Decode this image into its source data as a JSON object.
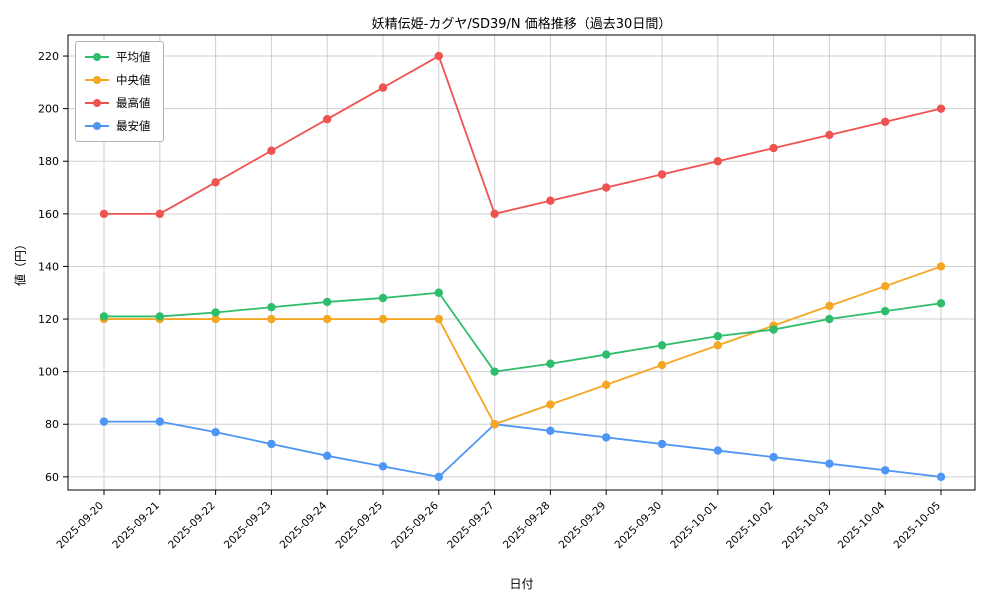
{
  "chart_data": {
    "type": "line",
    "title": "妖精伝姫-カグヤ/SD39/N 価格推移（過去30日間）",
    "xlabel": "日付",
    "ylabel": "値（円）",
    "grid": true,
    "legend_position": "upper-left",
    "ylim": [
      55,
      228
    ],
    "yticks": [
      60,
      80,
      100,
      120,
      140,
      160,
      180,
      200,
      220
    ],
    "x": [
      "2025-09-20",
      "2025-09-21",
      "2025-09-22",
      "2025-09-23",
      "2025-09-24",
      "2025-09-25",
      "2025-09-26",
      "2025-09-27",
      "2025-09-28",
      "2025-09-29",
      "2025-09-30",
      "2025-10-01",
      "2025-10-02",
      "2025-10-03",
      "2025-10-04",
      "2025-10-05"
    ],
    "series": [
      {
        "name": "平均値",
        "color": "#2ebd6b",
        "values": [
          121,
          121,
          122.5,
          124.5,
          126.5,
          128,
          130,
          100,
          103,
          106.5,
          110,
          113.5,
          116,
          120,
          123,
          126
        ]
      },
      {
        "name": "中央値",
        "color": "#f5a623",
        "values": [
          120,
          120,
          120,
          120,
          120,
          120,
          120,
          80,
          87.5,
          95,
          102.5,
          110,
          117.5,
          125,
          132.5,
          140
        ]
      },
      {
        "name": "最高値",
        "color": "#ef5350",
        "values": [
          160,
          160,
          172,
          184,
          196,
          208,
          220,
          160,
          165,
          170,
          175,
          180,
          185,
          190,
          195,
          200
        ]
      },
      {
        "name": "最安値",
        "color": "#4d96f5",
        "values": [
          81,
          81,
          77,
          72.5,
          68,
          64,
          60,
          80,
          77.5,
          75,
          72.5,
          70,
          67.5,
          65,
          62.5,
          60
        ]
      }
    ]
  }
}
